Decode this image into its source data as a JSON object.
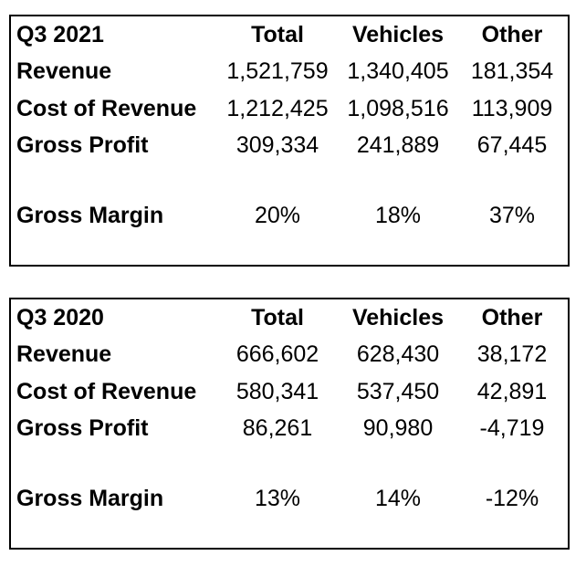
{
  "tables": [
    {
      "period": "Q3 2021",
      "columns": [
        "Total",
        "Vehicles",
        "Other"
      ],
      "rows": [
        {
          "label": "Revenue",
          "values": [
            "1,521,759",
            "1,340,405",
            "181,354"
          ]
        },
        {
          "label": "Cost of Revenue",
          "values": [
            "1,212,425",
            "1,098,516",
            "113,909"
          ]
        },
        {
          "label": "Gross Profit",
          "values": [
            "309,334",
            "241,889",
            "67,445"
          ]
        },
        {
          "label": "Gross Margin",
          "values": [
            "20%",
            "18%",
            "37%"
          ]
        }
      ]
    },
    {
      "period": "Q3 2020",
      "columns": [
        "Total",
        "Vehicles",
        "Other"
      ],
      "rows": [
        {
          "label": "Revenue",
          "values": [
            "666,602",
            "628,430",
            "38,172"
          ]
        },
        {
          "label": "Cost of Revenue",
          "values": [
            "580,341",
            "537,450",
            "42,891"
          ]
        },
        {
          "label": "Gross Profit",
          "values": [
            "86,261",
            "90,980",
            "-4,719"
          ]
        },
        {
          "label": "Gross Margin",
          "values": [
            "13%",
            "14%",
            "-12%"
          ]
        }
      ]
    }
  ]
}
